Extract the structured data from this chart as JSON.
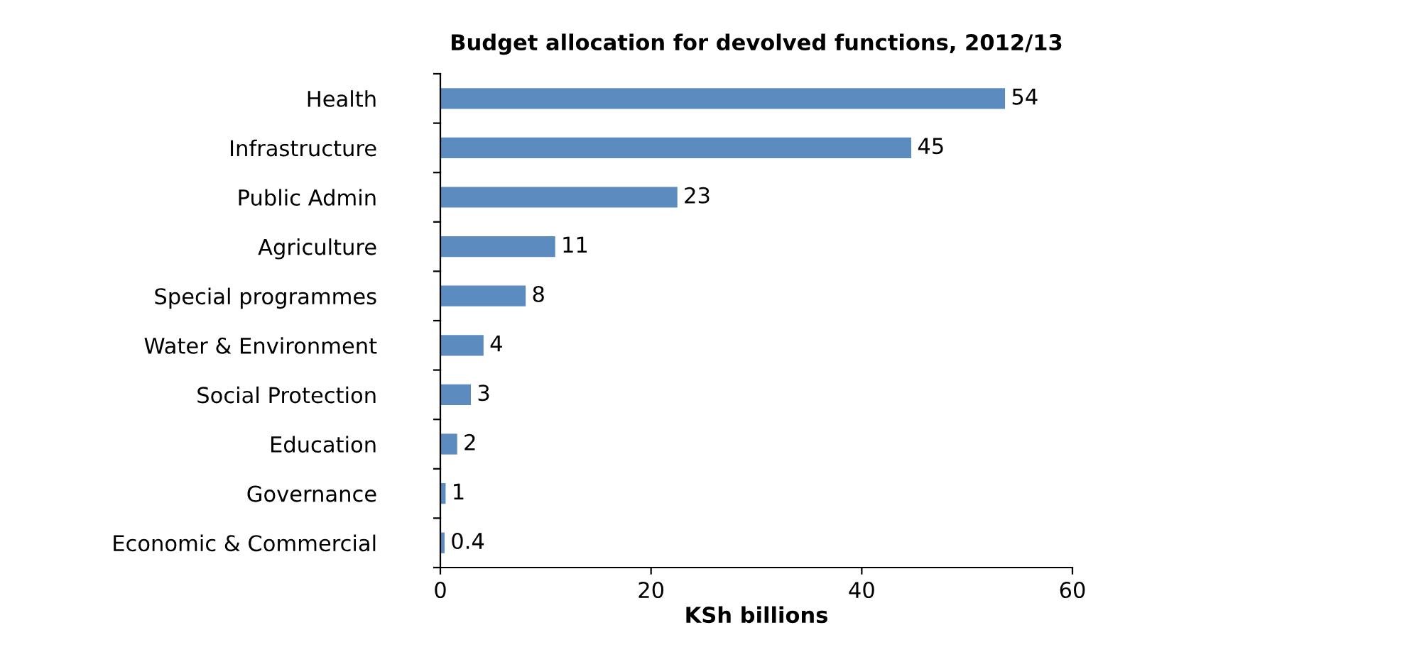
{
  "chart_data": {
    "type": "bar",
    "orientation": "horizontal",
    "title": "Budget allocation for devolved functions, 2012/13",
    "xlabel": "KSh billions",
    "categories": [
      "Health",
      "Infrastructure",
      "Public Admin",
      "Agriculture",
      "Special programmes",
      "Water & Environment",
      "Social Protection",
      "Education",
      "Governance",
      "Economic & Commercial"
    ],
    "values": [
      53.6,
      44.7,
      22.5,
      10.9,
      8.1,
      4.1,
      2.9,
      1.6,
      0.5,
      0.4
    ],
    "value_labels": [
      "54",
      "45",
      "23",
      "11",
      "8",
      "4",
      "3",
      "2",
      "1",
      "0.4"
    ],
    "color": "#5b8bbf",
    "xlim": [
      0,
      60
    ],
    "xticks": [
      0,
      20,
      40,
      60
    ],
    "grid": false,
    "legend": false
  }
}
